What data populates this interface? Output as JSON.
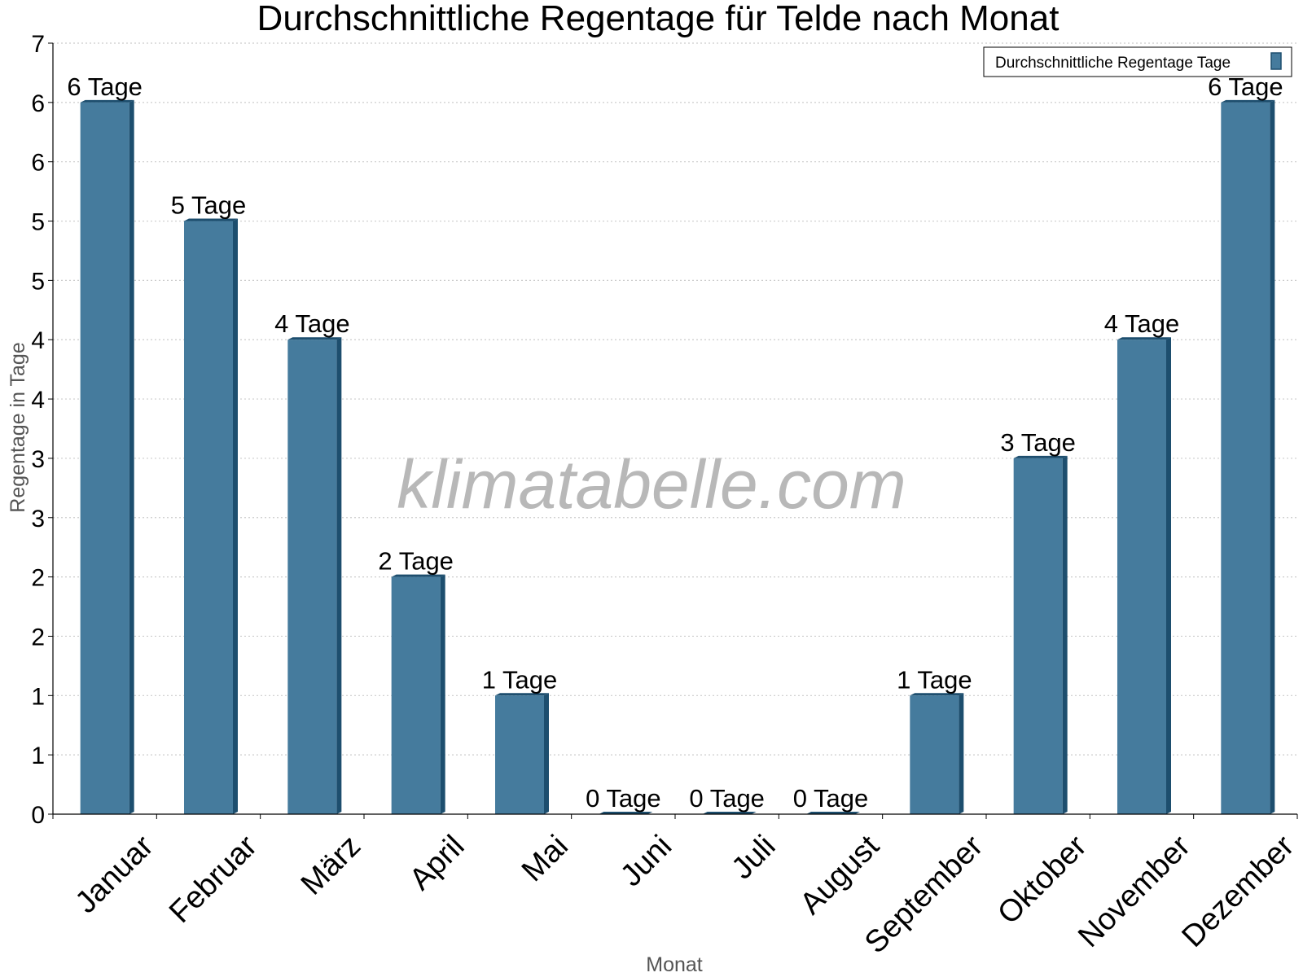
{
  "chart_data": {
    "type": "bar",
    "title": "Durchschnittliche Regentage für Telde nach Monat",
    "xlabel": "Monat",
    "ylabel": "Regentage in Tage",
    "categories": [
      "Januar",
      "Februar",
      "März",
      "April",
      "Mai",
      "Juni",
      "Juli",
      "August",
      "September",
      "Oktober",
      "November",
      "Dezember"
    ],
    "series": [
      {
        "name": "Durchschnittliche Regentage Tage",
        "values": [
          6,
          5,
          4,
          2,
          1,
          0,
          0,
          0,
          1,
          3,
          4,
          6
        ],
        "labels": [
          "6 Tage",
          "5 Tage",
          "4 Tage",
          "2 Tage",
          "1 Tage",
          "0 Tage",
          "0 Tage",
          "0 Tage",
          "1 Tage",
          "3 Tage",
          "4 Tage",
          "6 Tage"
        ]
      }
    ],
    "ylim": [
      0,
      6.5
    ],
    "yticks": [
      0,
      0.5,
      1,
      1.5,
      2,
      2.5,
      3,
      3.5,
      4,
      4.5,
      5,
      5.5,
      6,
      6.5
    ],
    "ytick_labels": [
      "0",
      "1",
      "1",
      "2",
      "2",
      "3",
      "3",
      "4",
      "4",
      "5",
      "5",
      "6",
      "6",
      "7"
    ],
    "grid": true,
    "legend_position": "top-right",
    "watermark": "klimatabelle.com",
    "colors": {
      "bar": "#457b9d",
      "bar_side": "#1d4e6e",
      "grid": "#cccccc",
      "axis": "#000000"
    }
  }
}
